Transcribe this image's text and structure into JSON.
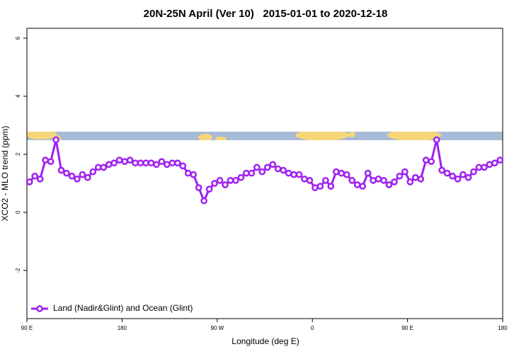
{
  "chart_data": {
    "type": "line",
    "title": "20N-25N April (Ver 10)   2015-01-01 to 2020-12-18",
    "xlabel": "Longitude (deg E)",
    "ylabel": "XCO2 - MLO trend (ppm)",
    "x": [
      92.5,
      97.5,
      102.5,
      107.5,
      112.5,
      117.5,
      122.5,
      127.5,
      132.5,
      137.5,
      142.5,
      147.5,
      152.5,
      157.5,
      162.5,
      167.5,
      172.5,
      177.5,
      182.5,
      187.5,
      192.5,
      197.5,
      202.5,
      207.5,
      212.5,
      217.5,
      222.5,
      227.5,
      232.5,
      237.5,
      242.5,
      247.5,
      252.5,
      257.5,
      262.5,
      267.5,
      272.5,
      277.5,
      282.5,
      287.5,
      292.5,
      297.5,
      302.5,
      307.5,
      312.5,
      317.5,
      322.5,
      327.5,
      332.5,
      337.5,
      342.5,
      347.5,
      352.5,
      357.5,
      362.5,
      367.5,
      372.5,
      377.5,
      382.5,
      387.5,
      392.5,
      397.5,
      402.5,
      407.5,
      412.5,
      417.5,
      422.5,
      427.5,
      432.5,
      437.5,
      442.5,
      447.5,
      452.5,
      457.5,
      462.5,
      467.5,
      472.5,
      477.5,
      482.5,
      487.5,
      492.5,
      497.5,
      502.5,
      507.5,
      512.5,
      517.5,
      522.5,
      527.5,
      532.5,
      537.5
    ],
    "series": [
      {
        "name": "Land (Nadir&Glint) and Ocean (Glint)",
        "color": "#a020f0",
        "values": [
          1.05,
          1.25,
          1.15,
          1.8,
          1.75,
          2.5,
          1.45,
          1.35,
          1.25,
          1.15,
          1.3,
          1.2,
          1.4,
          1.55,
          1.55,
          1.65,
          1.7,
          1.8,
          1.75,
          1.8,
          1.7,
          1.7,
          1.7,
          1.7,
          1.65,
          1.75,
          1.65,
          1.7,
          1.7,
          1.6,
          1.35,
          1.3,
          0.85,
          0.4,
          0.8,
          1.0,
          1.1,
          0.95,
          1.1,
          1.1,
          1.2,
          1.35,
          1.35,
          1.55,
          1.4,
          1.55,
          1.65,
          1.5,
          1.45,
          1.35,
          1.3,
          1.3,
          1.15,
          1.1,
          0.85,
          0.9,
          1.1,
          0.9,
          1.4,
          1.35,
          1.3,
          1.1,
          0.95,
          0.9,
          1.35,
          1.1,
          1.15,
          1.1,
          0.95,
          1.05,
          1.25,
          1.4,
          1.05,
          1.2,
          1.15,
          1.8,
          1.75,
          2.5,
          1.45,
          1.35,
          1.25,
          1.15,
          1.3,
          1.2,
          1.4,
          1.55,
          1.55,
          1.65,
          1.7,
          1.8
        ]
      }
    ],
    "xlim": [
      90,
      540
    ],
    "xticks": [
      {
        "value": 90,
        "label": "90 E"
      },
      180,
      {
        "value": 270,
        "label": "90 W"
      },
      {
        "value": 360,
        "label": "0"
      },
      {
        "value": 450,
        "label": "90 E"
      },
      {
        "value": 540,
        "label": "180"
      }
    ],
    "ylim": [
      -3.66,
      6.34
    ],
    "yticks": [
      -2,
      0,
      2,
      4,
      6
    ],
    "legend": "bottom-left"
  }
}
